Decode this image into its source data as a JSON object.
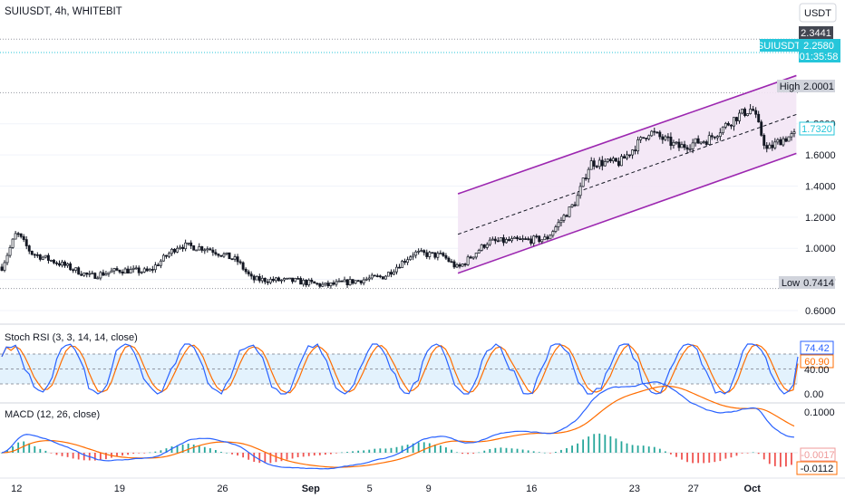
{
  "header": {
    "title": "SUIUSDT, 4h, WHITEBIT",
    "currency": "USDT"
  },
  "price_labels": {
    "level_2_3441": "2.3441",
    "symbol": "SUIUSDT",
    "last_price": "2.2580",
    "countdown": "01:35:58",
    "high_label": "High",
    "high_value": "2.0001",
    "low_label": "Low",
    "low_value": "0.7414",
    "current_price": "1.7320"
  },
  "x_axis": {
    "ticks": [
      "12",
      "19",
      "26",
      "Sep",
      "5",
      "9",
      "16",
      "23",
      "27",
      "Oct"
    ]
  },
  "indicators": {
    "stoch_title": "Stoch RSI (3, 3, 14, 14, close)",
    "stoch_k": "74.42",
    "stoch_d": "60.90",
    "stoch_ticks": [
      "40.00",
      "0.00"
    ],
    "macd_title": "MACD (12, 26, close)",
    "macd_ticks": [
      "0.1000"
    ],
    "macd_hist_value": "-0.0017",
    "macd_value": "-0.0112"
  },
  "colors": {
    "up": "#131722",
    "down": "#131722",
    "channel_line": "#9c27b0",
    "channel_fill": "#f3e5f5",
    "stoch_k": "#2962ff",
    "stoch_d": "#ff6d00",
    "stoch_band": "#e3f2fd",
    "macd_line": "#2962ff",
    "signal_line": "#ff6d00",
    "hist_pos": "#26a69a",
    "hist_neg": "#ef5350",
    "last_price_bg": "#26c6da"
  },
  "chart_data": [
    {
      "type": "candlestick",
      "title": "SUIUSDT, 4h, WHITEBIT",
      "price_axis_ticks": [
        "0.6000",
        "0.8000",
        "1.0000",
        "1.2000",
        "1.4000",
        "1.6000",
        "1.8000"
      ],
      "ylim": [
        0.53,
        2.45
      ],
      "x": [
        "12",
        "19",
        "26",
        "Sep",
        "5",
        "9",
        "16",
        "23",
        "27",
        "Oct"
      ],
      "close_path": [
        {
          "x": "Aug 11",
          "y": 0.88
        },
        {
          "x": "Aug 12",
          "y": 1.1
        },
        {
          "x": "Aug 13",
          "y": 0.97
        },
        {
          "x": "Aug 15",
          "y": 0.9
        },
        {
          "x": "Aug 17",
          "y": 0.82
        },
        {
          "x": "Aug 19",
          "y": 0.86
        },
        {
          "x": "Aug 21",
          "y": 0.85
        },
        {
          "x": "Aug 23",
          "y": 1.02
        },
        {
          "x": "Aug 25",
          "y": 1.0
        },
        {
          "x": "Aug 27",
          "y": 0.92
        },
        {
          "x": "Aug 28",
          "y": 0.8
        },
        {
          "x": "Aug 31",
          "y": 0.79
        },
        {
          "x": "Sep 2",
          "y": 0.76
        },
        {
          "x": "Sep 4",
          "y": 0.79
        },
        {
          "x": "Sep 6",
          "y": 0.82
        },
        {
          "x": "Sep 8",
          "y": 0.97
        },
        {
          "x": "Sep 10",
          "y": 0.95
        },
        {
          "x": "Sep 11",
          "y": 0.87
        },
        {
          "x": "Sep 13",
          "y": 1.04
        },
        {
          "x": "Sep 15",
          "y": 1.05
        },
        {
          "x": "Sep 17",
          "y": 1.06
        },
        {
          "x": "Sep 19",
          "y": 1.3
        },
        {
          "x": "Sep 20",
          "y": 1.55
        },
        {
          "x": "Sep 22",
          "y": 1.55
        },
        {
          "x": "Sep 24",
          "y": 1.75
        },
        {
          "x": "Sep 26",
          "y": 1.65
        },
        {
          "x": "Sep 28",
          "y": 1.7
        },
        {
          "x": "Sep 30",
          "y": 1.85
        },
        {
          "x": "Oct 1",
          "y": 1.9
        },
        {
          "x": "Oct 2",
          "y": 1.63
        },
        {
          "x": "Oct 3",
          "y": 1.7
        },
        {
          "x": "Oct 4",
          "y": 1.73
        }
      ],
      "channel": {
        "upper": [
          {
            "x": "Sep 11",
            "y": 1.35
          },
          {
            "x": "Oct 4",
            "y": 2.11
          }
        ],
        "middle": [
          {
            "x": "Sep 11",
            "y": 1.09
          },
          {
            "x": "Oct 4",
            "y": 1.86
          }
        ],
        "lower": [
          {
            "x": "Sep 11",
            "y": 0.84
          },
          {
            "x": "Oct 4",
            "y": 1.61
          }
        ]
      },
      "high": 2.0001,
      "low": 0.7414,
      "last": 1.732
    },
    {
      "type": "line",
      "title": "Stoch RSI (3, 3, 14, 14, close)",
      "ylim": [
        0,
        100
      ],
      "bands": [
        20,
        80
      ],
      "series": [
        {
          "name": "K",
          "last": 74.42
        },
        {
          "name": "D",
          "last": 60.9
        }
      ]
    },
    {
      "type": "line",
      "title": "MACD (12, 26, close)",
      "series": [
        {
          "name": "MACD",
          "last": -0.0112
        },
        {
          "name": "Histogram",
          "last": -0.0017
        }
      ]
    }
  ]
}
